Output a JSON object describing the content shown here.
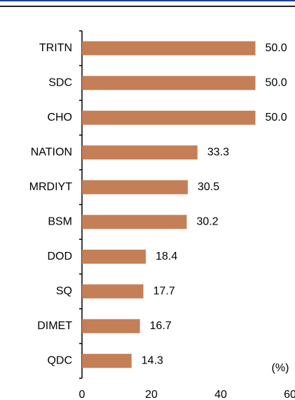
{
  "chart_data": {
    "type": "hbar",
    "categories": [
      "TRITN",
      "SDC",
      "CHO",
      "NATION",
      "MRDIYT",
      "BSM",
      "DOD",
      "SQ",
      "DIMET",
      "QDC"
    ],
    "values": [
      50.0,
      50.0,
      50.0,
      33.3,
      30.5,
      30.2,
      18.4,
      17.7,
      16.7,
      14.3
    ],
    "value_labels": [
      "50.0",
      "50.0",
      "50.0",
      "33.3",
      "30.5",
      "30.2",
      "18.4",
      "17.7",
      "16.7",
      "14.3"
    ],
    "color": "#c47f57",
    "unit_label": "(%)",
    "xlim": [
      0,
      60
    ],
    "xticks": [
      0,
      20,
      40,
      60
    ]
  }
}
